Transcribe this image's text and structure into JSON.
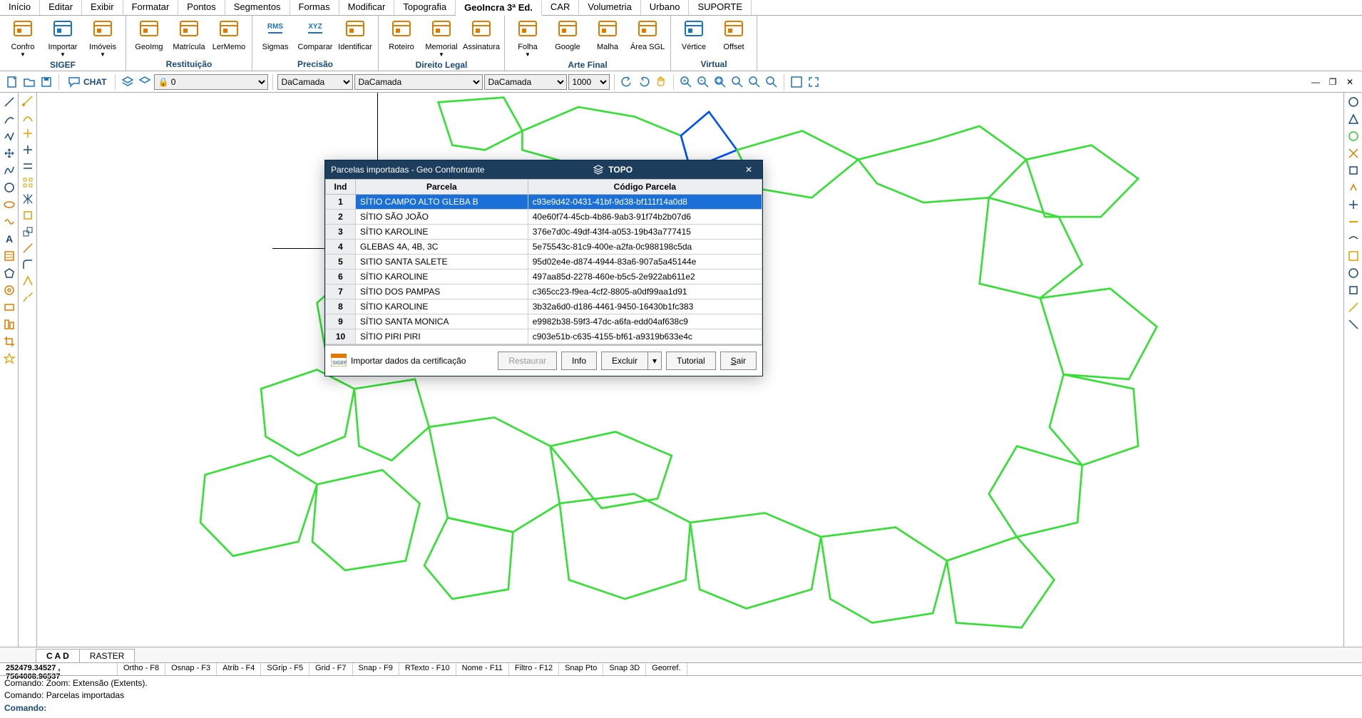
{
  "menubar": {
    "tabs": [
      "Início",
      "Editar",
      "Exibir",
      "Formatar",
      "Pontos",
      "Segmentos",
      "Formas",
      "Modificar",
      "Topografia",
      "GeoIncra 3ª Ed.",
      "CAR",
      "Volumetria",
      "Urbano",
      "SUPORTE"
    ],
    "active_index": 9
  },
  "ribbon": {
    "groups": [
      {
        "title": "SIGEF",
        "buttons": [
          {
            "label": "Confro",
            "icon": "#e07b00",
            "dropdown": true
          },
          {
            "label": "Importar",
            "icon": "#1974c4",
            "dropdown": true
          },
          {
            "label": "Imóveis",
            "icon": "#e07b00",
            "dropdown": true
          }
        ]
      },
      {
        "title": "Restituição",
        "buttons": [
          {
            "label": "GeoImg",
            "icon": "#e07b00"
          },
          {
            "label": "Matrícula",
            "icon": "#e07b00"
          },
          {
            "label": "LerMemo",
            "icon": "#e07b00"
          }
        ]
      },
      {
        "title": "Precisão",
        "buttons": [
          {
            "label": "Sigmas",
            "icon": "#1974c4",
            "text": "RMS"
          },
          {
            "label": "Comparar",
            "icon": "#1974c4",
            "text": "XYZ"
          },
          {
            "label": "Identificar",
            "icon": "#e07b00"
          }
        ]
      },
      {
        "title": "Direito Legal",
        "buttons": [
          {
            "label": "Roteiro",
            "icon": "#e07b00"
          },
          {
            "label": "Memorial",
            "icon": "#e07b00",
            "dropdown": true
          },
          {
            "label": "Assinatura",
            "icon": "#e07b00"
          }
        ]
      },
      {
        "title": "Arte Final",
        "buttons": [
          {
            "label": "Folha",
            "icon": "#e07b00",
            "dropdown": true
          },
          {
            "label": "Google",
            "icon": "#e07b00"
          },
          {
            "label": "Malha",
            "icon": "#e07b00"
          },
          {
            "label": "Área SGL",
            "icon": "#e07b00"
          }
        ]
      },
      {
        "title": "Virtual",
        "buttons": [
          {
            "label": "Vértice",
            "icon": "#1974c4"
          },
          {
            "label": "Offset",
            "icon": "#e07b00"
          }
        ]
      }
    ]
  },
  "toolbar": {
    "chat_label": "CHAT",
    "layer_value": "🔒 0",
    "select1": "DaCamada",
    "select2": "DaCamada",
    "select3": "DaCamada",
    "select4": "1000"
  },
  "viewtabs": {
    "tabs": [
      "C A D",
      "RASTER"
    ],
    "active_index": 0
  },
  "statusbar": {
    "coords": "252479.34527 , 7564008.96537",
    "items": [
      "Ortho - F8",
      "Osnap - F3",
      "Atrib - F4",
      "SGrip - F5",
      "Grid - F7",
      "Snap - F9",
      "RTexto - F10",
      "Nome - F11",
      "Filtro - F12",
      "Snap Pto",
      "Snap 3D",
      "Georref."
    ]
  },
  "cmd": {
    "line1": "Comando: Zoom: Extensão (Extents).",
    "line2": "Comando: Parcelas importadas",
    "prompt": "Comando:"
  },
  "dialog": {
    "title": "Parcelas importadas - Geo Confrontante",
    "brand": "TOPO",
    "columns": [
      "Ind",
      "Parcela",
      "Código Parcela"
    ],
    "rows": [
      {
        "ind": "1",
        "parcela": "SÍTIO CAMPO ALTO  GLEBA B",
        "codigo": "c93e9d42-0431-41bf-9d38-bf111f14a0d8",
        "selected": true
      },
      {
        "ind": "2",
        "parcela": "SÍTIO SÃO JOÃO",
        "codigo": "40e60f74-45cb-4b86-9ab3-91f74b2b07d6"
      },
      {
        "ind": "3",
        "parcela": "SÍTIO KAROLINE",
        "codigo": "376e7d0c-49df-43f4-a053-19b43a777415"
      },
      {
        "ind": "4",
        "parcela": "GLEBAS 4A, 4B, 3C",
        "codigo": "5e75543c-81c9-400e-a2fa-0c988198c5da"
      },
      {
        "ind": "5",
        "parcela": "SITIO SANTA SALETE",
        "codigo": "95d02e4e-d874-4944-83a6-907a5a45144e"
      },
      {
        "ind": "6",
        "parcela": "SÍTIO KAROLINE",
        "codigo": "497aa85d-2278-460e-b5c5-2e922ab611e2"
      },
      {
        "ind": "7",
        "parcela": "SÍTIO DOS PAMPAS",
        "codigo": "c365cc23-f9ea-4cf2-8805-a0df99aa1d91"
      },
      {
        "ind": "8",
        "parcela": "SÍTIO KAROLINE",
        "codigo": "3b32a6d0-d186-4461-9450-16430b1fc383"
      },
      {
        "ind": "9",
        "parcela": "SÍTIO SANTA MONICA",
        "codigo": "e9982b38-59f3-47dc-a6fa-edd04af638c9"
      },
      {
        "ind": "10",
        "parcela": "SÍTIO PIRI PIRI",
        "codigo": "c903e51b-c635-4155-bf61-a9319b633e4c"
      }
    ],
    "import_label": "Importar dados da certificação",
    "buttons": {
      "restaurar": "Restaurar",
      "info": "Info",
      "excluir": "Excluir",
      "tutorial": "Tutorial",
      "sair": "Sair"
    }
  },
  "map": {
    "stroke": "#33e033",
    "stroke_blue": "#0050ff",
    "stroke_width": 2
  }
}
